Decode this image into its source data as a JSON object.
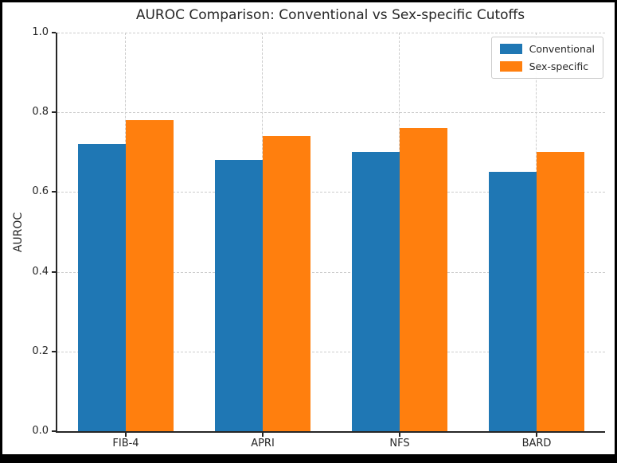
{
  "chart_data": {
    "type": "bar",
    "title": "AUROC Comparison: Conventional vs Sex-specific Cutoffs",
    "xlabel": "",
    "ylabel": "AUROC",
    "categories": [
      "FIB-4",
      "APRI",
      "NFS",
      "BARD"
    ],
    "series": [
      {
        "name": "Conventional",
        "color": "#1f77b4",
        "values": [
          0.72,
          0.68,
          0.7,
          0.65
        ]
      },
      {
        "name": "Sex-specific",
        "color": "#ff7f0e",
        "values": [
          0.78,
          0.74,
          0.76,
          0.7
        ]
      }
    ],
    "ylim": [
      0.0,
      1.0
    ],
    "yticks": [
      0.0,
      0.2,
      0.4,
      0.6,
      0.8,
      1.0
    ],
    "ytick_labels": [
      "0.0",
      "0.2",
      "0.4",
      "0.6",
      "0.8",
      "1.0"
    ],
    "grid": true,
    "grid_style": "dashed",
    "legend_position": "upper right"
  },
  "colors": {
    "bar_conventional": "#1f77b4",
    "bar_sex_specific": "#ff7f0e",
    "text": "#262626",
    "gridline": "#cccccc",
    "spine": "#262626",
    "frame": "#000000",
    "background": "#ffffff"
  }
}
